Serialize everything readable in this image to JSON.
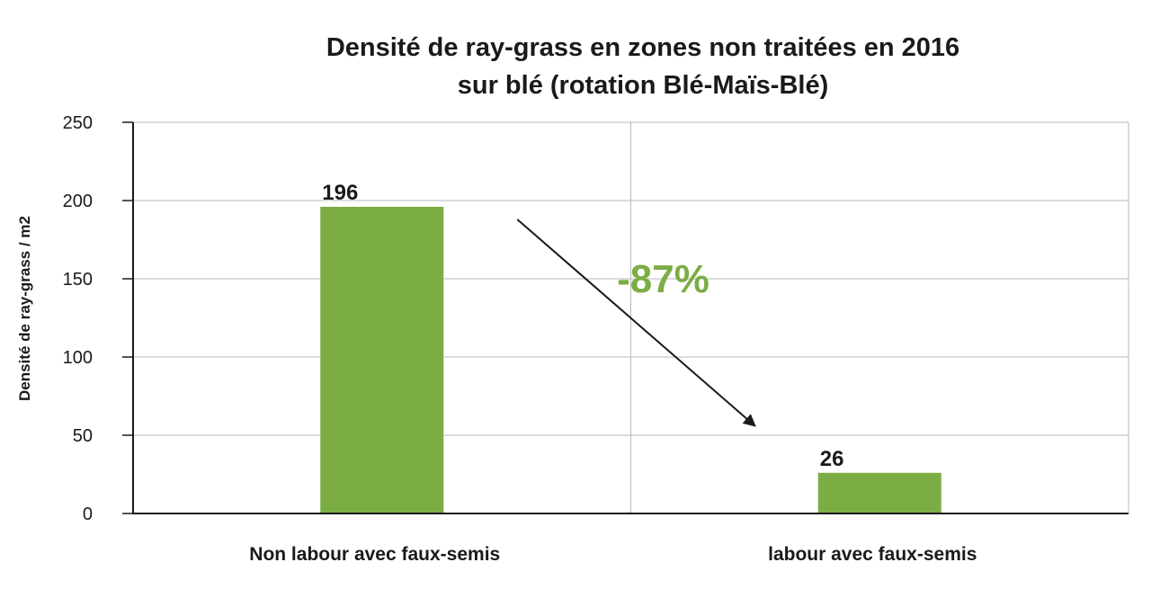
{
  "chart_data": {
    "type": "bar",
    "title_lines": [
      "Densité de ray-grass en zones non traitées en 2016",
      "sur blé (rotation Blé-Maïs-Blé)"
    ],
    "ylabel": "Densité de ray-grass / m2",
    "xlabel": "",
    "categories": [
      "Non labour avec faux-semis",
      "labour avec faux-semis"
    ],
    "values": [
      196,
      26
    ],
    "data_labels": [
      "196",
      "26"
    ],
    "ylim": [
      0,
      250
    ],
    "yticks": [
      0,
      50,
      100,
      150,
      200,
      250
    ],
    "grid": true,
    "bar_color": "#7cad45",
    "annotation": {
      "text": "-87%",
      "color": "#7cad45",
      "arrow": "from first bar down to second bar"
    }
  }
}
